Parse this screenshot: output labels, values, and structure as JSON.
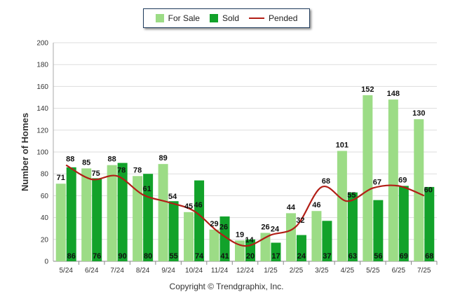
{
  "legend": {
    "items": [
      {
        "label": "For Sale",
        "color": "#9cdc86",
        "kind": "box"
      },
      {
        "label": "Sold",
        "color": "#12a22a",
        "kind": "box"
      },
      {
        "label": "Pended",
        "color": "#b21e16",
        "kind": "line"
      }
    ]
  },
  "copyright": "Copyright © Trendgraphix, Inc.",
  "chart_data": {
    "type": "bar",
    "ylabel": "Number of Homes",
    "ylim": [
      0,
      200
    ],
    "yticks": [
      0,
      20,
      40,
      60,
      80,
      100,
      120,
      140,
      160,
      180,
      200
    ],
    "grid": true,
    "legend_position": "top-center",
    "categories": [
      "5/24",
      "6/24",
      "7/24",
      "8/24",
      "9/24",
      "10/24",
      "11/24",
      "12/24",
      "1/25",
      "2/25",
      "3/25",
      "4/25",
      "5/25",
      "6/25",
      "7/25"
    ],
    "series": [
      {
        "name": "For Sale",
        "type": "bar",
        "color": "#9cdc86",
        "values": [
          71,
          85,
          88,
          78,
          89,
          45,
          29,
          19,
          26,
          44,
          46,
          101,
          152,
          148,
          130
        ]
      },
      {
        "name": "Sold",
        "type": "bar",
        "color": "#12a22a",
        "values": [
          86,
          76,
          90,
          80,
          55,
          74,
          41,
          20,
          17,
          24,
          37,
          63,
          56,
          69,
          68
        ]
      },
      {
        "name": "Pended",
        "type": "line",
        "color": "#b21e16",
        "values": [
          88,
          75,
          78,
          61,
          54,
          46,
          26,
          14,
          24,
          32,
          68,
          55,
          67,
          69,
          60
        ]
      }
    ]
  }
}
